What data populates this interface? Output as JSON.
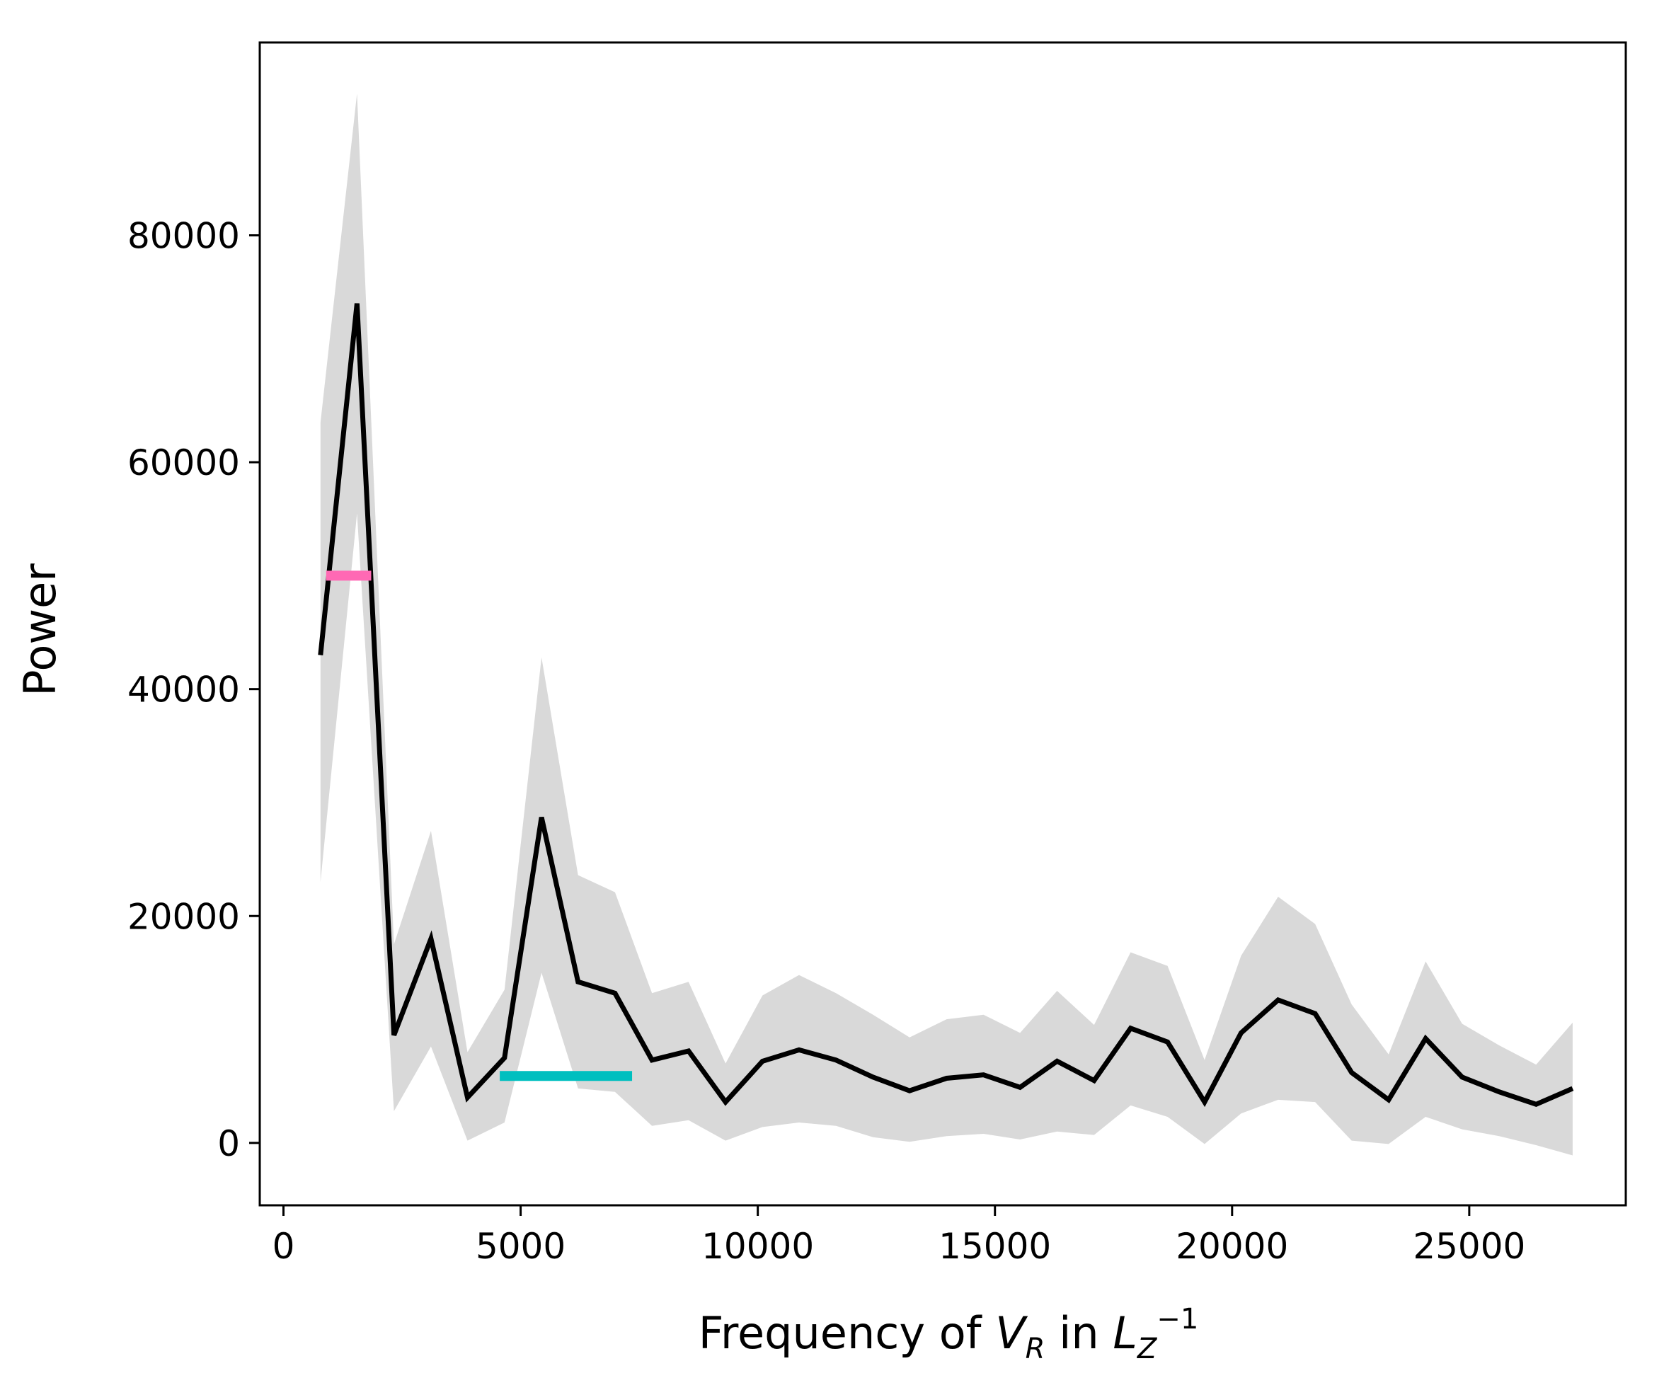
{
  "chart_data": {
    "type": "line",
    "title": "",
    "xlabel": {
      "prefix": "Frequency of ",
      "var": "V",
      "var_sub": "R",
      "middle": " in ",
      "var2": "L",
      "var2_sub": "Z",
      "var2_sup": "−1"
    },
    "ylabel": "Power",
    "xlim": [
      -500,
      28300
    ],
    "ylim": [
      -5500,
      97000
    ],
    "xticks": [
      0,
      5000,
      10000,
      15000,
      20000,
      25000
    ],
    "yticks": [
      0,
      20000,
      40000,
      60000,
      80000
    ],
    "grid": false,
    "series": [
      {
        "color": "#000000",
        "x": [
          780,
          1550,
          2330,
          3110,
          3880,
          4660,
          5440,
          6210,
          6990,
          7770,
          8540,
          9320,
          10100,
          10870,
          11650,
          12430,
          13200,
          13980,
          14760,
          15530,
          16310,
          17090,
          17860,
          18640,
          19420,
          20190,
          20970,
          21750,
          22520,
          23300,
          24080,
          24850,
          25630,
          26410,
          27180
        ],
        "y": [
          43000,
          74000,
          9500,
          18000,
          4000,
          7500,
          28700,
          14200,
          13200,
          7300,
          8100,
          3600,
          7200,
          8200,
          7300,
          5800,
          4600,
          5700,
          6000,
          4900,
          7200,
          5500,
          10100,
          8900,
          3600,
          9700,
          12600,
          11400,
          6200,
          3800,
          9200,
          5800,
          4500,
          3400,
          4800
        ],
        "band_upper": [
          63500,
          92500,
          17500,
          27500,
          8000,
          13500,
          42800,
          23600,
          22100,
          13200,
          14200,
          7000,
          13000,
          14800,
          13200,
          11300,
          9300,
          10900,
          11300,
          9700,
          13400,
          10400,
          16800,
          15600,
          7300,
          16500,
          21700,
          19300,
          12200,
          7800,
          16000,
          10500,
          8600,
          6900,
          10600
        ],
        "band_lower": [
          23000,
          55500,
          2800,
          8500,
          200,
          1800,
          15000,
          4800,
          4500,
          1500,
          2000,
          200,
          1400,
          1800,
          1500,
          500,
          100,
          600,
          800,
          300,
          1000,
          700,
          3300,
          2300,
          -100,
          2600,
          3800,
          3600,
          200,
          -100,
          2300,
          1200,
          600,
          -200,
          -1100
        ],
        "band_color": "#d9d9d9"
      }
    ],
    "annotations": [
      {
        "type": "hline",
        "color": "#ff69b4",
        "x_start": 900,
        "x_end": 1850,
        "y": 50000
      },
      {
        "type": "hline",
        "color": "#00bfbf",
        "x_start": 4560,
        "x_end": 7350,
        "y": 5900
      }
    ]
  }
}
